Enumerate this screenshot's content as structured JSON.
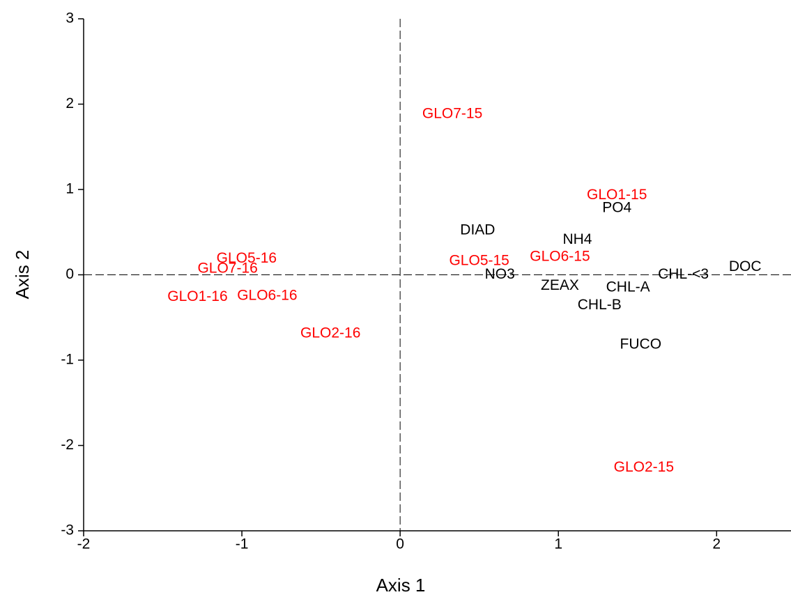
{
  "chart_data": {
    "type": "scatter",
    "xlabel": "Axis 1",
    "ylabel": "Axis 2",
    "xlim": [
      -2,
      2.47
    ],
    "ylim": [
      -3,
      3
    ],
    "xticks": [
      -2,
      -1,
      0,
      1,
      2
    ],
    "yticks": [
      -3,
      -2,
      -1,
      0,
      1,
      2,
      3
    ],
    "reference_lines": true,
    "series": [
      {
        "color": "#ff0000",
        "labels": [
          "GLO7-15",
          "GLO1-15",
          "GLO6-15",
          "GLO5-15",
          "GLO2-15",
          "GLO5-16",
          "GLO7-16",
          "GLO1-16",
          "GLO6-16",
          "GLO2-16"
        ],
        "x": [
          0.33,
          1.37,
          1.01,
          0.5,
          1.54,
          -0.97,
          -1.09,
          -1.28,
          -0.84,
          -0.44
        ],
        "values": [
          1.88,
          0.93,
          0.21,
          0.16,
          -2.26,
          0.19,
          0.07,
          -0.26,
          -0.25,
          -0.69
        ]
      },
      {
        "color": "#000000",
        "labels": [
          "PO4",
          "DIAD",
          "NH4",
          "NO3",
          "ZEAX",
          "CHL-A",
          "CHL-<3",
          "DOC",
          "CHL-B",
          "FUCO"
        ],
        "x": [
          1.37,
          0.49,
          1.12,
          0.63,
          1.01,
          1.44,
          1.79,
          2.18,
          1.26,
          1.52
        ],
        "values": [
          0.78,
          0.52,
          0.41,
          0.0,
          -0.13,
          -0.15,
          0.0,
          0.09,
          -0.36,
          -0.82
        ]
      }
    ]
  }
}
